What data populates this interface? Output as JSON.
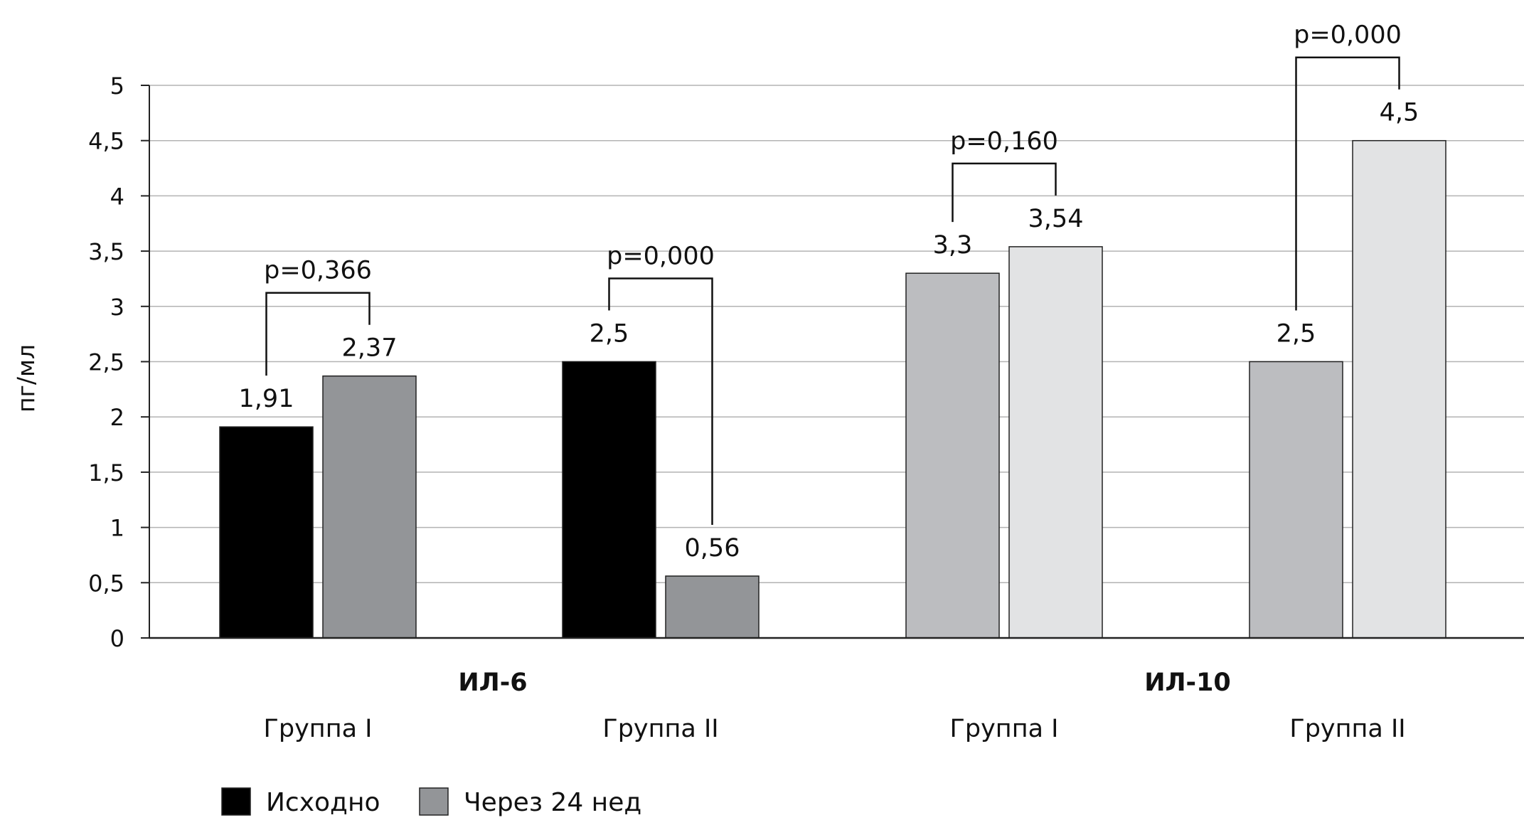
{
  "chart_data": {
    "type": "bar",
    "title": "",
    "xlabel": "",
    "ylabel": "пг/мл",
    "ylim": [
      0,
      5
    ],
    "yticks": [
      "0",
      "0,5",
      "1",
      "1,5",
      "2",
      "2,5",
      "3",
      "3,5",
      "4",
      "4,5",
      "5"
    ],
    "grid": true,
    "sections": [
      {
        "name": "ИЛ-6",
        "groups": [
          {
            "label": "Группа I",
            "values": [
              1.91,
              2.37
            ],
            "value_labels": [
              "1,91",
              "2,37"
            ],
            "colors": [
              "#000000",
              "#939598"
            ],
            "p_label": "p=0,366"
          },
          {
            "label": "Группа II",
            "values": [
              2.5,
              0.56
            ],
            "value_labels": [
              "2,5",
              "0,56"
            ],
            "colors": [
              "#000000",
              "#939598"
            ],
            "p_label": "p=0,000"
          }
        ]
      },
      {
        "name": "ИЛ-10",
        "groups": [
          {
            "label": "Группа I",
            "values": [
              3.3,
              3.54
            ],
            "value_labels": [
              "3,3",
              "3,54"
            ],
            "colors": [
              "#bcbdc0",
              "#e2e3e4"
            ],
            "p_label": "p=0,160"
          },
          {
            "label": "Группа II",
            "values": [
              2.5,
              4.5
            ],
            "value_labels": [
              "2,5",
              "4,5"
            ],
            "colors": [
              "#bcbdc0",
              "#e2e3e4"
            ],
            "p_label": "p=0,000"
          }
        ]
      }
    ],
    "legend": {
      "placement": "bottom-left",
      "entries": [
        {
          "label": "Исходно",
          "color": "#000000"
        },
        {
          "label": "Через 24 нед",
          "color": "#939598"
        }
      ]
    }
  }
}
